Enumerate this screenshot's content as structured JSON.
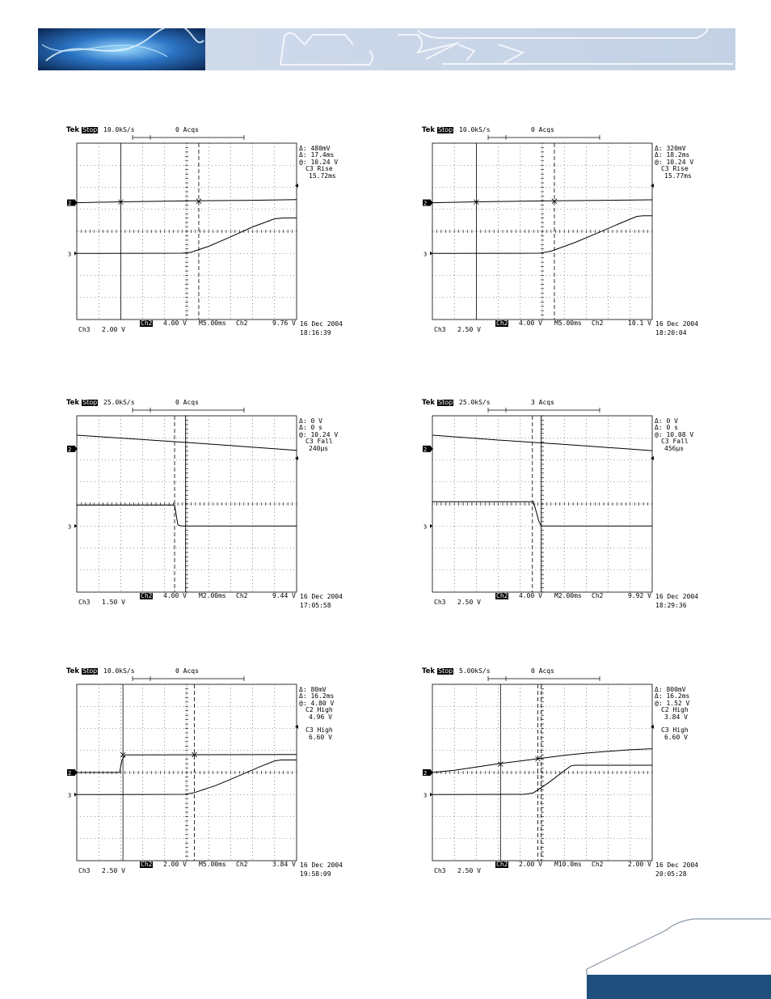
{
  "colors": {
    "banner_dark": "#0b2f5c",
    "banner_light": "#c9d6e6",
    "footer_bar": "#1e4f7d",
    "trace": "#000000",
    "grid": "#000000"
  },
  "chart_data": [
    {
      "type": "line",
      "header": {
        "brand": "Tek",
        "state": "Stop",
        "rate": "10.0kS/s",
        "acqs": "0 Acqs"
      },
      "measurements": [
        "Δ: 480mV",
        "Δ: 17.4ms",
        "@: 10.24 V",
        "C3 Rise",
        "15.72ms"
      ],
      "ch2_level_div": 1.3,
      "ch3_level_div": -1.0,
      "footer": {
        "ch2_label": "Ch2",
        "ch2_scale": "4.00 V",
        "time_div": "M5.00ms",
        "trig_src": "Ch2",
        "trig_level": "9.76 V",
        "ch3_label": "Ch3",
        "ch3_scale": "2.00 V",
        "date": "16 Dec 2004",
        "time": "18:16:39"
      },
      "series": [
        {
          "points": [
            [
              0,
              1.3
            ],
            [
              2,
              1.34
            ],
            [
              5,
              1.38
            ],
            [
              8,
              1.41
            ],
            [
              10,
              1.44
            ]
          ]
        },
        {
          "points": [
            [
              0,
              -1.0
            ],
            [
              4.8,
              -0.99
            ],
            [
              5.2,
              -0.95
            ],
            [
              6,
              -0.68
            ],
            [
              7,
              -0.25
            ],
            [
              8,
              0.2
            ],
            [
              9,
              0.57
            ],
            [
              9.4,
              0.61
            ],
            [
              10,
              0.61
            ]
          ]
        }
      ],
      "cursors_v": [
        {
          "x": 2.0,
          "style": "solid"
        },
        {
          "x": 5.55,
          "style": "dashed"
        }
      ],
      "trigger_x": 5.0,
      "cursor_marks": [
        [
          2.0,
          1.33
        ],
        [
          5.55,
          1.37
        ]
      ]
    },
    {
      "type": "line",
      "header": {
        "brand": "Tek",
        "state": "Stop",
        "rate": "10.0kS/s",
        "acqs": "0 Acqs"
      },
      "measurements": [
        "Δ: 320mV",
        "Δ: 18.2ms",
        "@: 10.24 V",
        "C3 Rise",
        "15.77ms"
      ],
      "ch2_level_div": 1.3,
      "ch3_level_div": -1.0,
      "footer": {
        "ch2_label": "Ch2",
        "ch2_scale": "4.00 V",
        "time_div": "M5.00ms",
        "trig_src": "Ch2",
        "trig_level": "10.1 V",
        "ch3_label": "Ch3",
        "ch3_scale": "2.50 V",
        "date": "16 Dec 2004",
        "time": "18:20:04"
      },
      "series": [
        {
          "points": [
            [
              0,
              1.3
            ],
            [
              2,
              1.34
            ],
            [
              5,
              1.38
            ],
            [
              8,
              1.41
            ],
            [
              10,
              1.43
            ]
          ]
        },
        {
          "points": [
            [
              0,
              -1.0
            ],
            [
              4.9,
              -0.99
            ],
            [
              5.4,
              -0.9
            ],
            [
              6.5,
              -0.5
            ],
            [
              7.5,
              -0.08
            ],
            [
              8.5,
              0.35
            ],
            [
              9.3,
              0.68
            ],
            [
              9.6,
              0.71
            ],
            [
              10,
              0.71
            ]
          ]
        }
      ],
      "cursors_v": [
        {
          "x": 2.0,
          "style": "solid"
        },
        {
          "x": 5.55,
          "style": "dashed"
        }
      ],
      "trigger_x": 5.0,
      "cursor_marks": [
        [
          2.0,
          1.33
        ],
        [
          5.55,
          1.37
        ]
      ]
    },
    {
      "type": "line",
      "header": {
        "brand": "Tek",
        "state": "Stop",
        "rate": "25.0kS/s",
        "acqs": "0 Acqs"
      },
      "measurements": [
        "Δ: 0 V",
        "Δ: 0 s",
        "@: 10.24 V",
        "C3 Fall",
        "240μs"
      ],
      "ch2_level_div": 2.5,
      "ch3_level_div": -1.0,
      "footer": {
        "ch2_label": "Ch2",
        "ch2_scale": "4.00 V",
        "time_div": "M2.00ms",
        "trig_src": "Ch2",
        "trig_level": "9.44 V",
        "ch3_label": "Ch3",
        "ch3_scale": "1.50 V",
        "date": "16 Dec 2004",
        "time": "17:05:58"
      },
      "series": [
        {
          "points": [
            [
              0,
              3.12
            ],
            [
              3,
              2.92
            ],
            [
              6,
              2.72
            ],
            [
              10,
              2.43
            ]
          ]
        },
        {
          "points": [
            [
              0,
              -0.05
            ],
            [
              4.45,
              -0.05
            ],
            [
              4.6,
              -0.95
            ],
            [
              4.75,
              -1.0
            ],
            [
              10,
              -1.0
            ]
          ]
        }
      ],
      "cursors_v": [
        {
          "x": 4.45,
          "style": "dashed"
        },
        {
          "x": 4.95,
          "style": "solid"
        }
      ],
      "trigger_x": 5.0,
      "cursor_marks": []
    },
    {
      "type": "line",
      "header": {
        "brand": "Tek",
        "state": "Stop",
        "rate": "25.0kS/s",
        "acqs": "3 Acqs"
      },
      "measurements": [
        "Δ: 0 V",
        "Δ: 0 s",
        "@: 10.08 V",
        "C3 Fall",
        "456μs"
      ],
      "ch2_level_div": 2.5,
      "ch3_level_div": -1.0,
      "footer": {
        "ch2_label": "Ch2",
        "ch2_scale": "4.00 V",
        "time_div": "M2.00ms",
        "trig_src": "Ch2",
        "trig_level": "9.92 V",
        "ch3_label": "Ch3",
        "ch3_scale": "2.50 V",
        "date": "16 Dec 2004",
        "time": "18:29:36"
      },
      "series": [
        {
          "points": [
            [
              0,
              3.12
            ],
            [
              3,
              2.9
            ],
            [
              6,
              2.7
            ],
            [
              10,
              2.42
            ]
          ]
        },
        {
          "points": [
            [
              0,
              0.1
            ],
            [
              4.6,
              0.1
            ],
            [
              4.85,
              -0.8
            ],
            [
              4.95,
              -1.0
            ],
            [
              10,
              -1.0
            ]
          ]
        }
      ],
      "cursors_v": [
        {
          "x": 4.95,
          "style": "solid"
        },
        {
          "x": 4.55,
          "style": "dashed"
        }
      ],
      "trigger_x": 5.0,
      "cursor_marks": []
    },
    {
      "type": "line",
      "header": {
        "brand": "Tek",
        "state": "Stop",
        "rate": "10.0kS/s",
        "acqs": "0 Acqs"
      },
      "measurements": [
        "Δ: 80mV",
        "Δ: 16.2ms",
        "@: 4.80 V",
        "C2 High",
        "4.96 V",
        "",
        "C3 High",
        "6.60 V"
      ],
      "ch2_level_div": 0.0,
      "ch3_level_div": -1.0,
      "footer": {
        "ch2_label": "Ch2",
        "ch2_scale": "2.00 V",
        "time_div": "M5.00ms",
        "trig_src": "Ch2",
        "trig_level": "3.84 V",
        "ch3_label": "Ch3",
        "ch3_scale": "2.50 V",
        "date": "16 Dec 2004",
        "time": "19:58:09"
      },
      "series": [
        {
          "points": [
            [
              0,
              0.0
            ],
            [
              1.95,
              0.0
            ],
            [
              2.05,
              0.55
            ],
            [
              2.2,
              0.8
            ],
            [
              10,
              0.82
            ]
          ]
        },
        {
          "points": [
            [
              0,
              -1.0
            ],
            [
              4.9,
              -0.99
            ],
            [
              5.3,
              -0.93
            ],
            [
              6.3,
              -0.6
            ],
            [
              7.3,
              -0.18
            ],
            [
              8.3,
              0.25
            ],
            [
              9.0,
              0.53
            ],
            [
              9.3,
              0.57
            ],
            [
              10,
              0.57
            ]
          ]
        }
      ],
      "cursors_v": [
        {
          "x": 2.1,
          "style": "solid"
        },
        {
          "x": 5.35,
          "style": "dashed"
        }
      ],
      "trigger_x": 5.0,
      "cursor_marks": [
        [
          2.1,
          0.8
        ],
        [
          5.35,
          0.81
        ]
      ]
    },
    {
      "type": "line",
      "header": {
        "brand": "Tek",
        "state": "Stop",
        "rate": "5.00kS/s",
        "acqs": "0 Acqs"
      },
      "measurements": [
        "Δ: 800mV",
        "Δ: 16.2ms",
        "@: 1.52 V",
        "C2 High",
        "3.84 V",
        "",
        "C3 High",
        "6.60 V"
      ],
      "ch2_level_div": 0.0,
      "ch3_level_div": -1.0,
      "footer": {
        "ch2_label": "Ch2",
        "ch2_scale": "2.00 V",
        "time_div": "M10.0ms",
        "trig_src": "Ch2",
        "trig_level": "2.00 V",
        "ch3_label": "Ch3",
        "ch3_scale": "2.50 V",
        "date": "16 Dec 2004",
        "time": "20:05:28"
      },
      "series": [
        {
          "points": [
            [
              0,
              0.0
            ],
            [
              1,
              0.1
            ],
            [
              2,
              0.25
            ],
            [
              3,
              0.4
            ],
            [
              4,
              0.52
            ],
            [
              5,
              0.65
            ],
            [
              6,
              0.78
            ],
            [
              7,
              0.88
            ],
            [
              8,
              0.96
            ],
            [
              9,
              1.03
            ],
            [
              10,
              1.08
            ]
          ]
        },
        {
          "points": [
            [
              0,
              -1.0
            ],
            [
              4.2,
              -0.99
            ],
            [
              4.6,
              -0.92
            ],
            [
              5.3,
              -0.45
            ],
            [
              6.0,
              0.08
            ],
            [
              6.3,
              0.3
            ],
            [
              6.5,
              0.33
            ],
            [
              10,
              0.33
            ]
          ]
        }
      ],
      "cursors_v": [
        {
          "x": 3.1,
          "style": "solid"
        },
        {
          "x": 4.8,
          "style": "dashed"
        },
        {
          "x": 4.95,
          "style": "dashed"
        }
      ],
      "trigger_x": 5.0,
      "cursor_marks": [
        [
          3.1,
          0.38
        ],
        [
          4.8,
          0.62
        ]
      ]
    }
  ]
}
